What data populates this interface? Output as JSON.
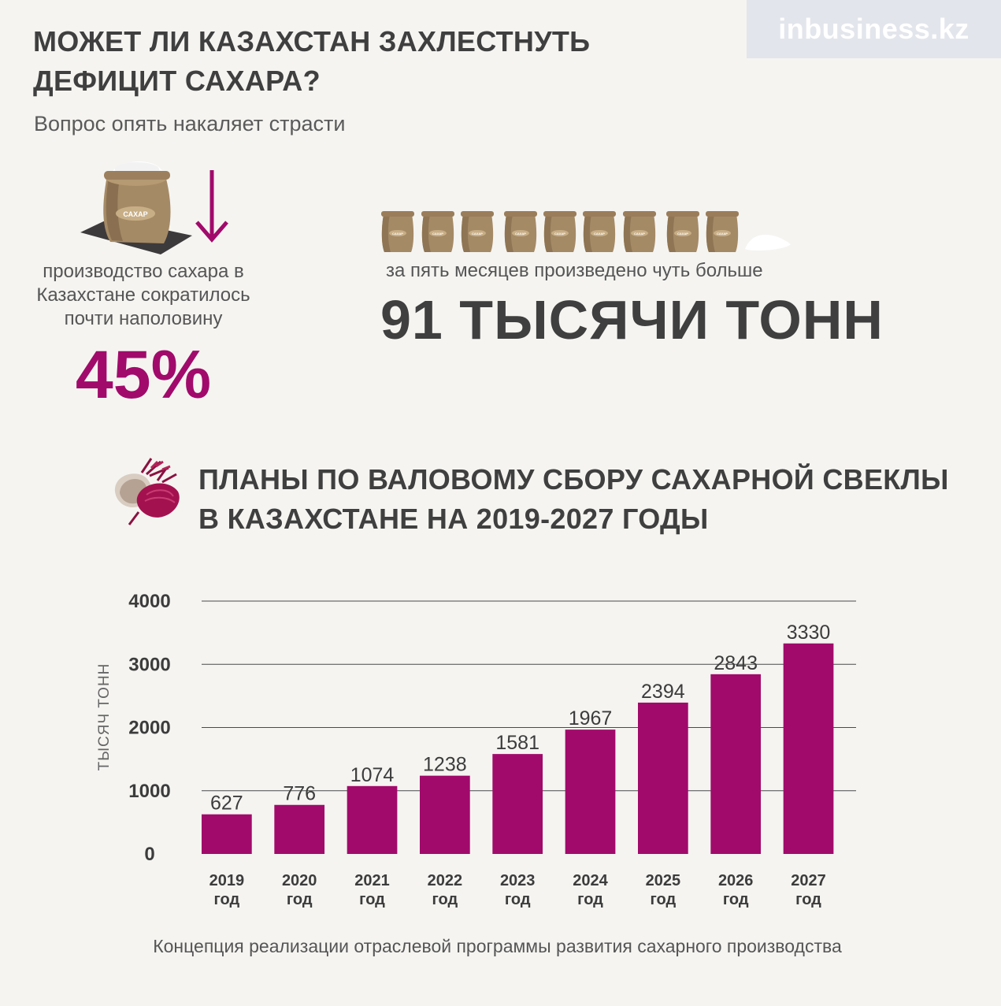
{
  "header": {
    "title_lines": [
      "МОЖЕТ ЛИ КАЗАХСТАН ЗАХЛЕСТНУТЬ",
      "ДЕФИЦИТ САХАРА?"
    ],
    "subtitle": "Вопрос опять накаляет страсти",
    "logo": "inbusiness.kz"
  },
  "decline": {
    "bag_label": "САХАР",
    "text_lines": [
      "производство сахара в",
      "Казахстане сократилось",
      "почти наполовину"
    ],
    "value": "45%"
  },
  "production": {
    "bag_label": "САХАР",
    "bag_count": 9,
    "text": "за пять месяцев произведено чуть больше",
    "value": "91 ТЫСЯЧИ ТОНН"
  },
  "chart_section": {
    "title_lines": [
      "ПЛАНЫ ПО ВАЛОВОМУ СБОРУ САХАРНОЙ СВЕКЛЫ",
      "В КАЗАХСТАНЕ НА 2019-2027 ГОДЫ"
    ],
    "source": "Концепция реализации отраслевой программы развития сахарного производства"
  },
  "colors": {
    "accent": "#a10a6b",
    "text_dark": "#3f3f3f",
    "background": "#f5f4f1",
    "logo_bg": "#e3e5ec"
  },
  "chart_data": {
    "type": "bar",
    "categories": [
      "2019",
      "2020",
      "2021",
      "2022",
      "2023",
      "2024",
      "2025",
      "2026",
      "2027"
    ],
    "category_suffix": "год",
    "values": [
      627,
      776,
      1074,
      1238,
      1581,
      1967,
      2394,
      2843,
      3330
    ],
    "ylabel": "ТЫСЯЧ ТОНН",
    "ylim": [
      0,
      4000
    ],
    "yticks": [
      0,
      1000,
      2000,
      3000,
      4000
    ],
    "grid": true,
    "bar_color": "#a10a6b"
  }
}
